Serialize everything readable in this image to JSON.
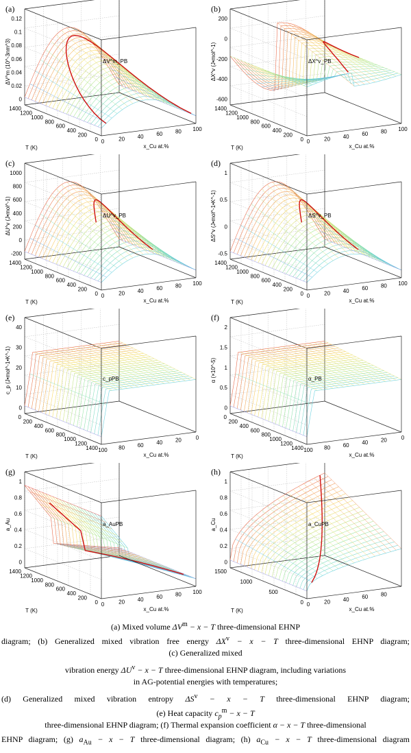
{
  "panels": [
    {
      "id": "a",
      "label": "(a)",
      "zlabel": "ΔV^m (10^-3nm^3)",
      "zticks": [
        "0",
        "0.02",
        "0.04",
        "0.06",
        "0.08",
        "0.1",
        "0.12"
      ],
      "tticks": [
        "1400",
        "1200",
        "1000",
        "800",
        "600",
        "400",
        "200",
        "0"
      ],
      "xticks": [
        "0",
        "20",
        "40",
        "60",
        "80",
        "100"
      ],
      "tlabel": "T (K)",
      "xlabel": "x_Cu at.%",
      "annot": "ΔV^m_PB",
      "shape": "hump",
      "curve": "arc"
    },
    {
      "id": "b",
      "label": "(b)",
      "zlabel": "ΔX^v (J•mol^-1)",
      "zticks": [
        "-600",
        "-400",
        "-200",
        "0",
        "200"
      ],
      "tticks": [
        "1400",
        "1200",
        "1000",
        "800",
        "600",
        "400",
        "200",
        "0"
      ],
      "xticks": [
        "0",
        "20",
        "40",
        "60",
        "80",
        "100"
      ],
      "tlabel": "T (K)",
      "xlabel": "x_Cu at.%",
      "annot": "ΔX^v_PB",
      "shape": "valley",
      "curve": "rise"
    },
    {
      "id": "c",
      "label": "(c)",
      "zlabel": "ΔU^v (J•mol^-1)",
      "zticks": [
        "-200",
        "0",
        "200",
        "400",
        "600",
        "800",
        "1000"
      ],
      "tticks": [
        "1400",
        "1200",
        "1000",
        "800",
        "600",
        "400",
        "200",
        "0"
      ],
      "xticks": [
        "0",
        "20",
        "40",
        "60",
        "80",
        "100"
      ],
      "tlabel": "T (K)",
      "xlabel": "x_Cu at.%",
      "annot": "ΔU^v_PB",
      "shape": "hump",
      "curve": "flat"
    },
    {
      "id": "d",
      "label": "(d)",
      "zlabel": "ΔS^v (J•mol^-1•K^-1)",
      "zticks": [
        "-0.5",
        "0",
        "0.5",
        "1"
      ],
      "tticks": [
        "1400",
        "1200",
        "1000",
        "800",
        "600",
        "400",
        "200",
        "0"
      ],
      "xticks": [
        "0",
        "20",
        "40",
        "60",
        "80",
        "100"
      ],
      "tlabel": "T (K)",
      "xlabel": "x_Cu at.%",
      "annot": "ΔS^v_PB",
      "shape": "hump",
      "curve": "flat"
    },
    {
      "id": "e",
      "label": "(e)",
      "zlabel": "c_p (J•mol^-1•K^-1)",
      "zticks": [
        "0",
        "10",
        "20",
        "30",
        "40"
      ],
      "tticks": [
        "0",
        "200",
        "400",
        "600",
        "800",
        "1000",
        "1200",
        "1400"
      ],
      "xticks": [
        "100",
        "80",
        "60",
        "40",
        "20",
        "0"
      ],
      "tlabel": "T (K)",
      "xlabel": "x_Cu at.%",
      "annot": "c_pPB",
      "shape": "plateau",
      "curve": "none"
    },
    {
      "id": "f",
      "label": "(f)",
      "zlabel": "α (×10^-5)",
      "zticks": [
        "0",
        "0.5",
        "1",
        "1.5",
        "2"
      ],
      "tticks": [
        "0",
        "200",
        "400",
        "600",
        "800",
        "1000",
        "1200",
        "1400"
      ],
      "xticks": [
        "100",
        "80",
        "60",
        "40",
        "20",
        "0"
      ],
      "tlabel": "T (K)",
      "xlabel": "x_Cu at.%",
      "annot": "α_PB",
      "shape": "plateau",
      "curve": "none"
    },
    {
      "id": "g",
      "label": "(g)",
      "zlabel": "a_Au",
      "zticks": [
        "0",
        "0.2",
        "0.4",
        "0.6",
        "0.8",
        "1"
      ],
      "tticks": [
        "1400",
        "1200",
        "1000",
        "800",
        "600",
        "400",
        "200",
        "0"
      ],
      "xticks": [
        "0",
        "20",
        "40",
        "60",
        "80",
        "100"
      ],
      "tlabel": "T (K)",
      "xlabel": "x_Cu at.%",
      "annot": "a_AuPB",
      "shape": "fall",
      "curve": "fall"
    },
    {
      "id": "h",
      "label": "(h)",
      "zlabel": "a_Cu",
      "zticks": [
        "0",
        "0.2",
        "0.4",
        "0.6",
        "0.8",
        "1"
      ],
      "tticks": [
        "1500",
        "1000",
        "500",
        "0"
      ],
      "xticks": [
        "0",
        "20",
        "40",
        "60",
        "80"
      ],
      "tlabel": "T (K)",
      "xlabel": "x_Cu at.%",
      "annot": "a_CuPB",
      "shape": "riseup",
      "curve": "riseup"
    }
  ],
  "caption": {
    "l1a": "(a) Mixed volume ",
    "l1m": "ΔV",
    "l1s": "m",
    "l1b": " − x − T",
    "l1c": "  three-dimensional EHNP",
    "l2a": "diagram; (b) Generalized mixed vibration free energy ",
    "l2m": "ΔX",
    "l2s": "v",
    "l2b": " − x − T",
    "l2c": "  three-dimensional EHNP diagram;",
    "l3": "(c) Generalized mixed",
    "l4a": "vibration energy ",
    "l4m": "ΔU",
    "l4s": "v",
    "l4b": " − x − T",
    "l4c": " three-dimensional EHNP diagram, including variations",
    "l5": "in AG-potential energies with temperatures;",
    "l6a": "(d) Generalized mixed vibration entropy ",
    "l6m": "ΔS",
    "l6s": "v",
    "l6b": " − x − T",
    "l6c": "  three-dimensional EHNP diagram;",
    "l7a": "(e) Heat capacity ",
    "l7m": "c",
    "l7sub": "p",
    "l7sup": "m",
    "l7b": " − x − T",
    "l8a": "three-dimensional EHNP diagram; (f) Thermal expansion coefficient ",
    "l8m": "α − x − T",
    "l8c": "  three-dimensional",
    "l9a": "EHNP diagram; (g) ",
    "l9m1": "a",
    "l9s1": "Au",
    "l9b": " − x − T",
    "l9c": "  three-dimensional diagram; (h) ",
    "l9m2": "a",
    "l9s2": "Cu",
    "l9d": " − x − T",
    "l9e": "  three-dimensional diagram"
  }
}
